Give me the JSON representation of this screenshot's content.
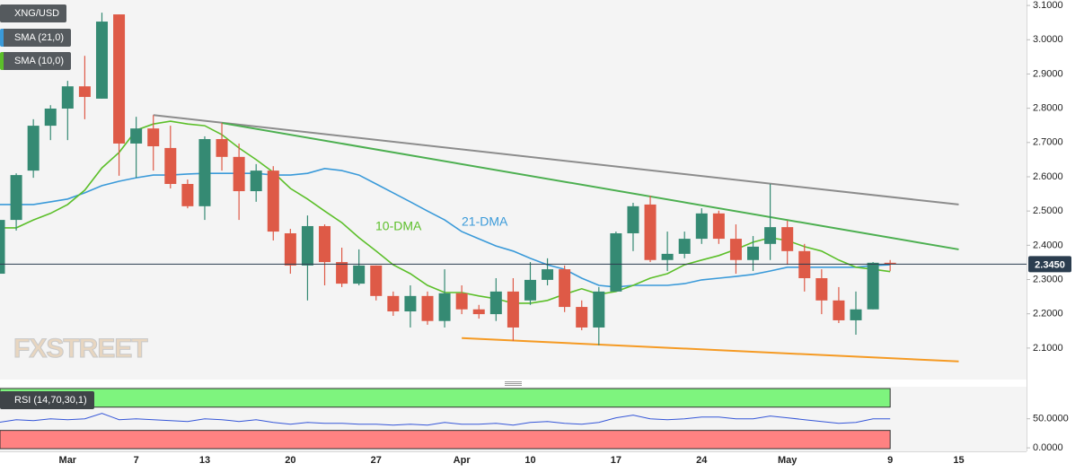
{
  "chart_data": [
    {
      "type": "candlestick",
      "name": "XNG/USD",
      "up_color": "#358a73",
      "down_color": "#de5a47",
      "categories": [
        null,
        null,
        null,
        null,
        "Mar",
        null,
        null,
        null,
        "7",
        null,
        null,
        null,
        "13",
        null,
        null,
        null,
        null,
        "20",
        null,
        null,
        null,
        null,
        "27",
        null,
        null,
        null,
        null,
        "Apr",
        null,
        null,
        null,
        "10",
        null,
        null,
        null,
        null,
        "17",
        null,
        null,
        null,
        null,
        "24",
        null,
        null,
        null,
        null,
        "May",
        null,
        null,
        null,
        null,
        null,
        "9",
        null,
        null,
        null,
        "15"
      ],
      "open": [
        2.317,
        2.474,
        2.618,
        2.749,
        2.799,
        2.864,
        2.828,
        3.074,
        2.697,
        2.741,
        2.684,
        2.579,
        2.514,
        2.71,
        2.658,
        2.558,
        2.618,
        2.435,
        2.341,
        2.456,
        2.351,
        2.288,
        2.341,
        2.252,
        2.207,
        2.252,
        2.179,
        2.26,
        2.213,
        2.199,
        2.265,
        2.239,
        2.299,
        2.33,
        2.22,
        2.16,
        2.265,
        2.435,
        2.519,
        2.357,
        2.375,
        2.419,
        2.493,
        2.419,
        2.357,
        2.404,
        2.453,
        2.383,
        2.304,
        2.239,
        2.181,
        2.213,
        2.349,
        null,
        null,
        null,
        null
      ],
      "high": [
        2.474,
        2.61,
        2.768,
        2.809,
        2.88,
        2.953,
        3.079,
        3.074,
        2.775,
        2.78,
        2.749,
        2.592,
        2.718,
        2.757,
        2.697,
        2.637,
        2.631,
        2.448,
        2.487,
        2.461,
        2.393,
        2.388,
        2.341,
        2.265,
        2.283,
        2.265,
        2.33,
        2.283,
        2.226,
        2.304,
        2.304,
        2.351,
        2.362,
        2.341,
        2.239,
        2.278,
        2.44,
        2.524,
        2.545,
        2.44,
        2.44,
        2.508,
        2.501,
        2.461,
        2.427,
        2.579,
        2.472,
        2.404,
        2.33,
        2.278,
        2.265,
        2.351,
        2.357,
        null,
        null,
        null,
        null
      ],
      "low": [
        2.296,
        2.443,
        2.597,
        2.707,
        2.707,
        2.768,
        2.828,
        2.603,
        2.597,
        2.618,
        2.566,
        2.508,
        2.474,
        2.618,
        2.474,
        2.527,
        2.414,
        2.317,
        2.239,
        2.283,
        2.278,
        2.283,
        2.239,
        2.194,
        2.16,
        2.168,
        2.16,
        2.199,
        2.186,
        2.179,
        2.121,
        2.226,
        2.283,
        2.205,
        2.152,
        2.108,
        2.265,
        2.383,
        2.351,
        2.325,
        2.362,
        2.404,
        2.404,
        2.317,
        2.325,
        2.357,
        2.343,
        2.265,
        2.199,
        2.173,
        2.139,
        2.213,
        2.325,
        null,
        null,
        null,
        null
      ],
      "close": [
        2.474,
        2.605,
        2.749,
        2.799,
        2.864,
        2.833,
        3.053,
        2.697,
        2.741,
        2.689,
        2.579,
        2.514,
        2.71,
        2.658,
        2.558,
        2.618,
        2.44,
        2.341,
        2.456,
        2.351,
        2.288,
        2.341,
        2.252,
        2.207,
        2.252,
        2.179,
        2.26,
        2.213,
        2.199,
        2.265,
        2.16,
        2.299,
        2.33,
        2.22,
        2.16,
        2.265,
        2.435,
        2.514,
        2.357,
        2.375,
        2.419,
        2.493,
        2.419,
        2.357,
        2.396,
        2.453,
        2.383,
        2.304,
        2.239,
        2.181,
        2.213,
        2.349,
        2.345,
        null,
        null,
        null,
        null
      ],
      "series": [
        {
          "name": "SMA (21,0)",
          "color": "#3a9ad9",
          "values": [
            2.519,
            2.519,
            2.519,
            2.527,
            2.535,
            2.553,
            2.574,
            2.587,
            2.597,
            2.605,
            2.605,
            2.608,
            2.61,
            2.61,
            2.61,
            2.61,
            2.605,
            2.605,
            2.61,
            2.624,
            2.618,
            2.605,
            2.579,
            2.553,
            2.527,
            2.5,
            2.474,
            2.44,
            2.419,
            2.398,
            2.383,
            2.362,
            2.343,
            2.33,
            2.304,
            2.283,
            2.278,
            2.283,
            2.283,
            2.283,
            2.288,
            2.299,
            2.304,
            2.309,
            2.315,
            2.325,
            2.336,
            2.336,
            2.336,
            2.336,
            2.336,
            2.341,
            2.343,
            null,
            null,
            null,
            null
          ]
        },
        {
          "name": "SMA (10,0)",
          "color": "#5cbf2a",
          "values": [
            2.451,
            2.451,
            2.474,
            2.493,
            2.519,
            2.561,
            2.626,
            2.671,
            2.736,
            2.754,
            2.762,
            2.754,
            2.749,
            2.723,
            2.684,
            2.65,
            2.613,
            2.566,
            2.535,
            2.5,
            2.466,
            2.422,
            2.383,
            2.343,
            2.317,
            2.283,
            2.262,
            2.262,
            2.252,
            2.244,
            2.231,
            2.231,
            2.239,
            2.257,
            2.273,
            2.257,
            2.265,
            2.283,
            2.304,
            2.317,
            2.343,
            2.357,
            2.37,
            2.388,
            2.409,
            2.422,
            2.414,
            2.396,
            2.383,
            2.357,
            2.336,
            2.33,
            2.323,
            null,
            null,
            null,
            null
          ]
        }
      ],
      "annotations": [
        {
          "text": "10-DMA",
          "color": "#5cbf2a"
        },
        {
          "text": "21-DMA",
          "color": "#3a9ad9"
        }
      ],
      "trendlines": [
        {
          "color": "#8c8c8c",
          "from": [
            9,
            2.78
          ],
          "to": [
            56,
            2.519
          ]
        },
        {
          "color": "#4caf50",
          "from": [
            13,
            2.757
          ],
          "to": [
            56,
            2.388
          ]
        },
        {
          "color": "#f59a23",
          "from": [
            27,
            2.129
          ],
          "to": [
            56,
            2.061
          ]
        }
      ],
      "price_line": {
        "value": 2.345,
        "label": "2.3450",
        "color": "#2b3d4f"
      },
      "watermark": "FXSTREET",
      "ylim": [
        2.008,
        3.116
      ],
      "yticks": [
        {
          "value": 2.1,
          "label": "2.1000"
        },
        {
          "value": 2.2,
          "label": "2.2000"
        },
        {
          "value": 2.3,
          "label": "2.3000"
        },
        {
          "value": 2.4,
          "label": "2.4000"
        },
        {
          "value": 2.5,
          "label": "2.5000"
        },
        {
          "value": 2.6,
          "label": "2.6000"
        },
        {
          "value": 2.7,
          "label": "2.7000"
        },
        {
          "value": 2.8,
          "label": "2.8000"
        },
        {
          "value": 2.9,
          "label": "2.9000"
        },
        {
          "value": 3.0,
          "label": "3.0000"
        },
        {
          "value": 3.1,
          "label": "3.1000"
        }
      ],
      "grid": false
    },
    {
      "type": "line",
      "title": "RSI (14,70,30,1)",
      "color": "#3556d8",
      "upper": 70,
      "lower": 30,
      "upper_color": "#7ef47e",
      "lower_color": "#ff8282",
      "values": [
        43.8,
        48.4,
        46.9,
        50,
        48.4,
        50,
        59.4,
        48.4,
        50,
        48.4,
        46.9,
        45.3,
        50,
        48.4,
        45.3,
        48.4,
        43.8,
        40.6,
        43.8,
        42.2,
        42.2,
        40.6,
        40.6,
        39.1,
        40.6,
        39.1,
        43.8,
        40.6,
        40.6,
        42.2,
        39.1,
        43.8,
        45.3,
        42.2,
        40.6,
        43.8,
        51.6,
        56.3,
        50,
        48.4,
        50,
        53.1,
        53.1,
        50,
        50,
        54.7,
        51.6,
        48.4,
        45.3,
        42.2,
        43.8,
        50,
        50,
        null,
        null,
        null,
        null
      ],
      "ylim": [
        -6,
        105
      ],
      "yticks": [
        {
          "value": 50,
          "label": "50.0000"
        },
        {
          "value": 0,
          "label": "0.0000"
        }
      ],
      "grid": false
    }
  ]
}
